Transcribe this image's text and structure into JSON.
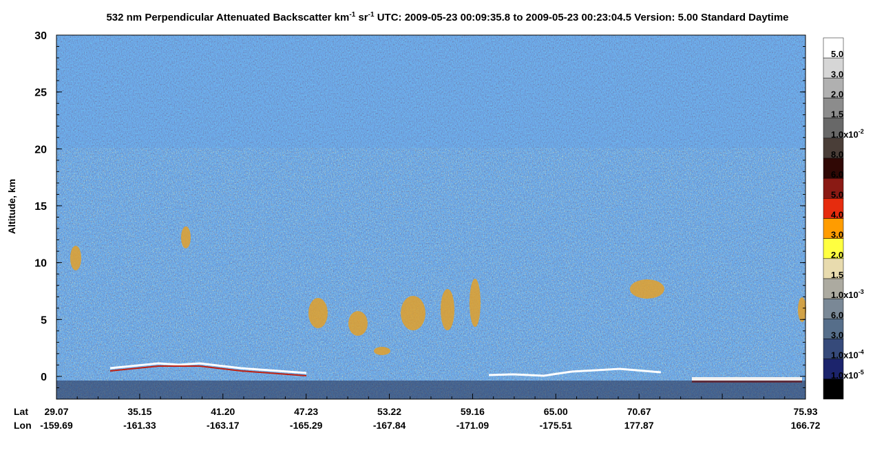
{
  "chart_data": {
    "type": "curtain",
    "title": [
      "532 nm Perpendicular Attenuated Backscatter km",
      "-1",
      " sr",
      "-1",
      "  UTC: 2009-05-23 00:09:35.8 to 2009-05-23 00:23:04.5  Version: 5.00 Standard Daytime"
    ],
    "ylabel": "Altitude, km",
    "ylim": [
      -2,
      30
    ],
    "yticks": [
      0,
      5,
      10,
      15,
      20,
      25,
      30
    ],
    "x_row_labels": [
      "Lat",
      "Lon"
    ],
    "lat": [
      "29.07",
      "35.15",
      "41.20",
      "47.23",
      "53.22",
      "59.16",
      "65.00",
      "70.67",
      null,
      "75.93"
    ],
    "lon": [
      "-159.69",
      "-161.33",
      "-163.17",
      "-165.29",
      "-167.84",
      "-171.09",
      "-175.51",
      "177.87",
      null,
      "166.72"
    ],
    "colorbar": {
      "colors": [
        "#ffffff",
        "#d6d6d6",
        "#b0b0b0",
        "#8c8c8c",
        "#686868",
        "#4a3e38",
        "#300805",
        "#8a1a14",
        "#e62c0e",
        "#ff9c00",
        "#ffff40",
        "#e8dbae",
        "#acaaa0",
        "#7a8896",
        "#566e8a",
        "#364a7a",
        "#1c246c",
        "#000000"
      ],
      "labels": [
        "5.0",
        "3.0",
        "2.0",
        "1.5",
        {
          "base": "1.0x10",
          "exp": "-2"
        },
        "8.0",
        "6.0",
        "5.0",
        "4.0",
        "3.0",
        "2.0",
        "1.5",
        {
          "base": "1.0x10",
          "exp": "-3"
        },
        "6.0",
        "3.0",
        {
          "base": "1.0x10",
          "exp": "-4"
        },
        {
          "base": "1.0x10",
          "exp": "-5"
        }
      ]
    }
  }
}
